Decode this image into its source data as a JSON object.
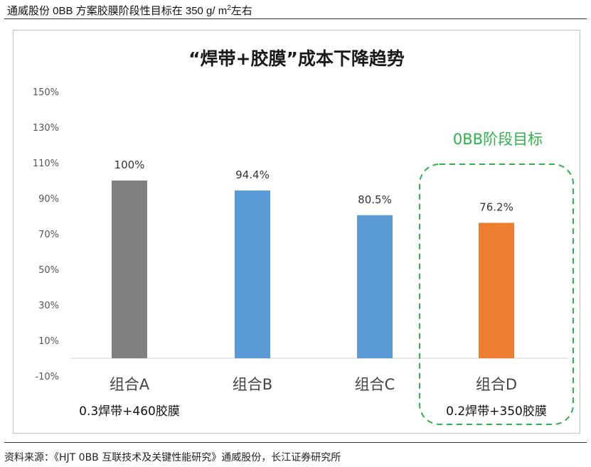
{
  "header": {
    "title_prefix": "通威股份 0BB 方案胶膜阶段性目标在 350 g/ m",
    "title_sup": "2",
    "title_suffix": "左右"
  },
  "source": "资料来源：《HJT 0BB 互联技术及关键性能研究》通威股份，长江证券研究所",
  "chart_data": {
    "type": "bar",
    "title": "“焊带+胶膜”成本下降趋势",
    "categories": [
      "组合A",
      "组合B",
      "组合C",
      "组合D"
    ],
    "sublabels": [
      "0.3焊带+460胶膜",
      "",
      "",
      "0.2焊带+350胶膜"
    ],
    "values": [
      100,
      94.4,
      80.5,
      76.2
    ],
    "value_labels": [
      "100%",
      "94.4%",
      "80.5%",
      "76.2%"
    ],
    "colors": [
      "#7f7f7f",
      "#5b9bd5",
      "#5b9bd5",
      "#ed7d31"
    ],
    "yticks": [
      "150%",
      "130%",
      "110%",
      "90%",
      "70%",
      "50%",
      "30%",
      "10%",
      "-10%"
    ],
    "ylim": [
      -10,
      150
    ],
    "grid": false,
    "annotation": {
      "text": "0BB阶段目标",
      "color": "#2db34a",
      "target_category": "组合D"
    }
  }
}
